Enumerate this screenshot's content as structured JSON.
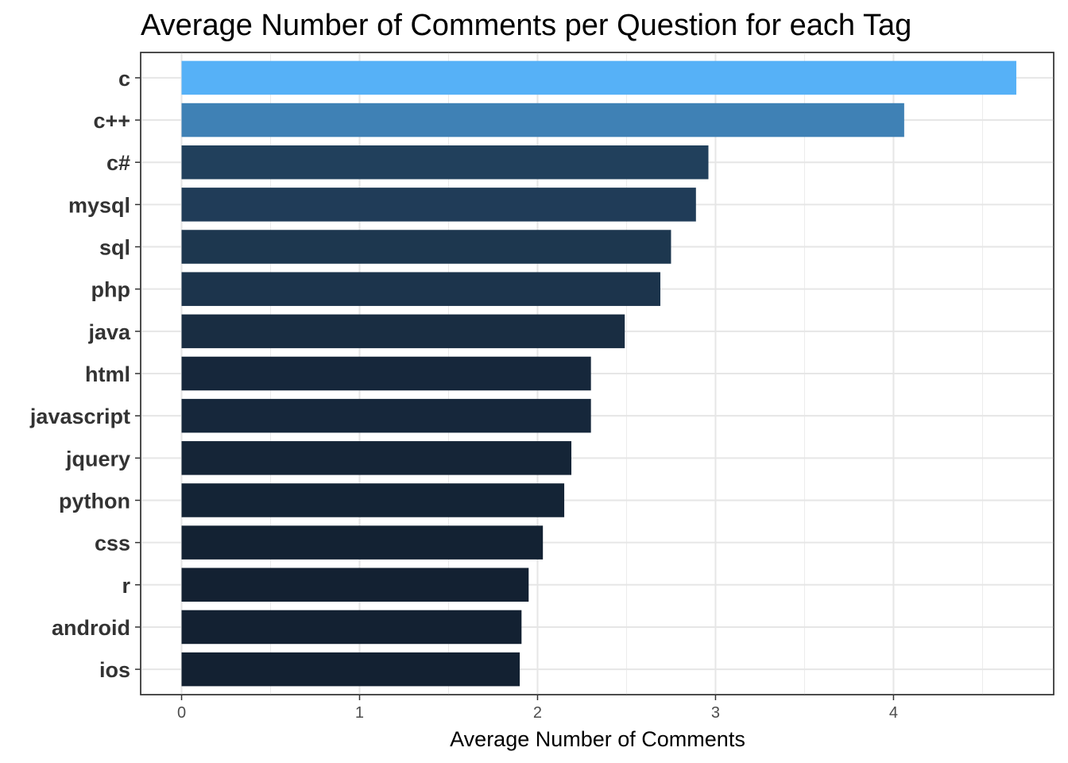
{
  "chart_data": {
    "type": "bar",
    "orientation": "horizontal",
    "title": "Average Number of Comments per Question for each Tag",
    "xlabel": "Average Number of Comments",
    "ylabel": "",
    "xlim": [
      -0.23,
      4.9
    ],
    "x_ticks": [
      0,
      1,
      2,
      3,
      4
    ],
    "grid": true,
    "legend": "none",
    "categories": [
      "c",
      "c++",
      "c#",
      "mysql",
      "sql",
      "php",
      "java",
      "html",
      "javascript",
      "jquery",
      "python",
      "css",
      "r",
      "android",
      "ios"
    ],
    "values": [
      4.69,
      4.06,
      2.96,
      2.89,
      2.75,
      2.69,
      2.49,
      2.3,
      2.3,
      2.19,
      2.15,
      2.03,
      1.95,
      1.91,
      1.9
    ],
    "color_scale": {
      "low": "#132132",
      "high": "#56B1F7"
    }
  }
}
